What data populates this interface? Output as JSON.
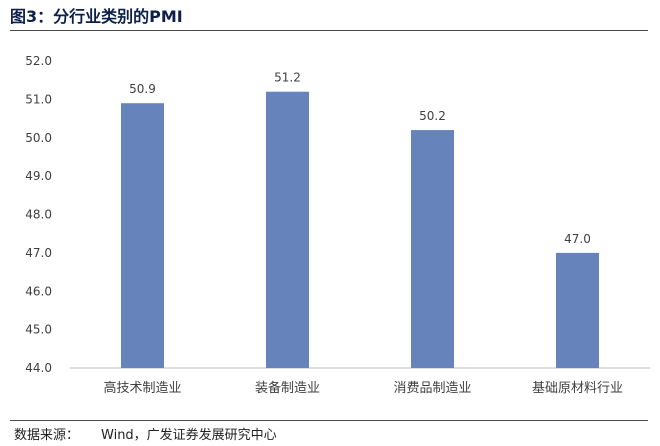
{
  "figure": {
    "title": "图3：分行业类别的PMI"
  },
  "source": {
    "label": "数据来源：",
    "text": "Wind，广发证券发展研究中心"
  },
  "chart_data": {
    "type": "bar",
    "categories": [
      "高技术制造业",
      "装备制造业",
      "消费品制造业",
      "基础原材料行业"
    ],
    "values": [
      50.9,
      51.2,
      50.2,
      47.0
    ],
    "value_labels": [
      "50.9",
      "51.2",
      "50.2",
      "47.0"
    ],
    "yticks": [
      "44.0",
      "45.0",
      "46.0",
      "47.0",
      "48.0",
      "49.0",
      "50.0",
      "51.0",
      "52.0"
    ],
    "ylim": [
      44.0,
      52.0
    ],
    "title": "",
    "xlabel": "",
    "ylabel": "",
    "grid": false,
    "legend": "none",
    "bar_color": "#6683bb",
    "axis_color": "#bfbfbf",
    "label_color": "#404040"
  }
}
